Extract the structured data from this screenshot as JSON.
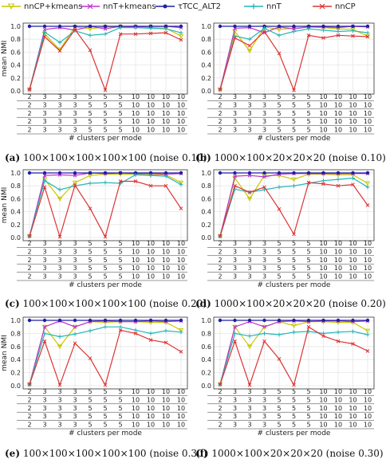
{
  "legend": [
    {
      "label": "nnCP+kmeans",
      "color": "#c8c800",
      "marker": "v"
    },
    {
      "label": "nnT+kmeans",
      "color": "#bb33cc",
      "marker": "x"
    },
    {
      "label": "τTCC_ALT2",
      "color": "#1f1fa8",
      "marker": "o"
    },
    {
      "label": "nnT",
      "color": "#22b5b5",
      "marker": "+"
    },
    {
      "label": "nnCP",
      "color": "#dd3333",
      "marker": "x"
    }
  ],
  "colors": {
    "nnCP_kmeans": "#c8c800",
    "nnT_kmeans": "#bb33cc",
    "tTCC": "#1f1fa8",
    "nnT": "#22b5b5",
    "nnCP": "#dd3333"
  },
  "captions": [
    {
      "letter": "(a)",
      "text": "100×100×100×100×100 (noise 0.10)"
    },
    {
      "letter": "(b)",
      "text": "1000×100×20×20×20 (noise 0.10)"
    },
    {
      "letter": "(c)",
      "text": "100×100×100×100×100 (noise 0.20)"
    },
    {
      "letter": "(d)",
      "text": "1000×100×20×20×20 (noise 0.20)"
    },
    {
      "letter": "(e)",
      "text": "100×100×100×100×100 (noise 0.30)"
    },
    {
      "letter": "(f)",
      "text": "1000×100×20×20×20 (noise 0.30)"
    }
  ],
  "chart_data": [
    {
      "type": "line",
      "ylabel": "mean NMI",
      "xlabel": "# clusters per mode",
      "ylim": [
        0.0,
        1.0
      ],
      "yticks": [
        "0.0",
        "0.2",
        "0.4",
        "0.6",
        "0.8",
        "1.0"
      ],
      "ytick_values": [
        0,
        0.2,
        0.4,
        0.6,
        0.8,
        1.0
      ],
      "grid": true,
      "categories": [
        [
          "2",
          "2",
          "2",
          "2",
          "2"
        ],
        [
          "3",
          "3",
          "3",
          "3",
          "3"
        ],
        [
          "3",
          "3",
          "3",
          "3",
          "3"
        ],
        [
          "3",
          "3",
          "3",
          "3",
          "3"
        ],
        [
          "5",
          "5",
          "5",
          "5",
          "5"
        ],
        [
          "5",
          "5",
          "5",
          "5",
          "5"
        ],
        [
          "5",
          "5",
          "5",
          "5",
          "5"
        ],
        [
          "10",
          "10",
          "10",
          "10",
          "10"
        ],
        [
          "10",
          "10",
          "10",
          "10",
          "10"
        ],
        [
          "10",
          "10",
          "10",
          "10",
          "10"
        ],
        [
          "10",
          "10",
          "10",
          "10",
          "10"
        ]
      ],
      "series": [
        {
          "key": "nnCP_kmeans",
          "values": [
            0.02,
            0.88,
            0.64,
            0.99,
            0.96,
            0.99,
            0.99,
            0.99,
            0.98,
            0.97,
            0.85
          ]
        },
        {
          "key": "nnT_kmeans",
          "values": [
            0.02,
            0.95,
            0.98,
            0.94,
            1.0,
            0.96,
            1.0,
            0.99,
            1.0,
            1.0,
            0.98
          ]
        },
        {
          "key": "tTCC",
          "values": [
            1.0,
            1.0,
            1.0,
            1.0,
            1.0,
            1.0,
            1.0,
            1.0,
            1.0,
            1.0,
            1.0
          ]
        },
        {
          "key": "nnT",
          "values": [
            0.02,
            0.91,
            0.75,
            0.93,
            0.86,
            0.88,
            0.98,
            0.98,
            0.97,
            0.96,
            0.9
          ]
        },
        {
          "key": "nnCP",
          "values": [
            0.02,
            0.84,
            0.62,
            0.95,
            0.63,
            0.01,
            0.88,
            0.88,
            0.89,
            0.9,
            0.79
          ]
        }
      ]
    },
    {
      "type": "line",
      "ylabel": "",
      "xlabel": "# clusters per mode",
      "ylim": [
        0.0,
        1.0
      ],
      "yticks": [
        "0.0",
        "0.2",
        "0.4",
        "0.6",
        "0.8",
        "1.0"
      ],
      "ytick_values": [
        0,
        0.2,
        0.4,
        0.6,
        0.8,
        1.0
      ],
      "grid": true,
      "categories": [
        [
          "2",
          "2",
          "2",
          "2",
          "2"
        ],
        [
          "3",
          "3",
          "3",
          "3",
          "3"
        ],
        [
          "3",
          "3",
          "3",
          "3",
          "3"
        ],
        [
          "3",
          "3",
          "3",
          "3",
          "3"
        ],
        [
          "5",
          "5",
          "5",
          "5",
          "5"
        ],
        [
          "5",
          "5",
          "5",
          "5",
          "5"
        ],
        [
          "5",
          "5",
          "5",
          "5",
          "5"
        ],
        [
          "10",
          "10",
          "10",
          "10",
          "10"
        ],
        [
          "10",
          "10",
          "10",
          "10",
          "10"
        ],
        [
          "10",
          "10",
          "10",
          "10",
          "10"
        ],
        [
          "10",
          "10",
          "10",
          "10",
          "10"
        ]
      ],
      "series": [
        {
          "key": "nnCP_kmeans",
          "values": [
            0.02,
            0.92,
            0.62,
            0.99,
            0.95,
            0.97,
            0.99,
            0.98,
            0.96,
            0.95,
            0.85
          ]
        },
        {
          "key": "nnT_kmeans",
          "values": [
            0.02,
            0.97,
            0.98,
            0.9,
            0.99,
            0.96,
            0.99,
            0.99,
            0.98,
            1.0,
            0.99
          ]
        },
        {
          "key": "tTCC",
          "values": [
            1.0,
            1.0,
            1.0,
            1.0,
            1.0,
            1.0,
            1.0,
            1.0,
            1.0,
            1.0,
            1.0
          ]
        },
        {
          "key": "nnT",
          "values": [
            0.02,
            0.85,
            0.8,
            0.97,
            0.86,
            0.92,
            0.96,
            0.94,
            0.92,
            0.93,
            0.9
          ]
        },
        {
          "key": "nnCP",
          "values": [
            0.02,
            0.82,
            0.7,
            0.92,
            0.58,
            0.01,
            0.86,
            0.82,
            0.86,
            0.85,
            0.84
          ]
        }
      ]
    },
    {
      "type": "line",
      "ylabel": "mean NMI",
      "xlabel": "# clusters per mode",
      "ylim": [
        0.0,
        1.0
      ],
      "yticks": [
        "0.0",
        "0.2",
        "0.4",
        "0.6",
        "0.8",
        "1.0"
      ],
      "ytick_values": [
        0,
        0.2,
        0.4,
        0.6,
        0.8,
        1.0
      ],
      "grid": true,
      "categories": [
        [
          "2",
          "2",
          "2",
          "2",
          "2"
        ],
        [
          "3",
          "3",
          "3",
          "3",
          "3"
        ],
        [
          "3",
          "3",
          "3",
          "3",
          "3"
        ],
        [
          "3",
          "3",
          "3",
          "3",
          "3"
        ],
        [
          "5",
          "5",
          "5",
          "5",
          "5"
        ],
        [
          "5",
          "5",
          "5",
          "5",
          "5"
        ],
        [
          "5",
          "5",
          "5",
          "5",
          "5"
        ],
        [
          "10",
          "10",
          "10",
          "10",
          "10"
        ],
        [
          "10",
          "10",
          "10",
          "10",
          "10"
        ],
        [
          "10",
          "10",
          "10",
          "10",
          "10"
        ],
        [
          "10",
          "10",
          "10",
          "10",
          "10"
        ]
      ],
      "series": [
        {
          "key": "nnCP_kmeans",
          "values": [
            0.02,
            0.9,
            0.6,
            0.85,
            0.96,
            0.98,
            0.98,
            0.98,
            0.97,
            0.97,
            0.85
          ]
        },
        {
          "key": "nnT_kmeans",
          "values": [
            0.02,
            0.96,
            0.97,
            0.96,
            1.0,
            0.99,
            1.0,
            0.99,
            0.99,
            0.98,
            0.99
          ]
        },
        {
          "key": "tTCC",
          "values": [
            1.0,
            1.0,
            1.0,
            1.0,
            1.0,
            1.0,
            1.0,
            1.0,
            1.0,
            1.0,
            1.0
          ]
        },
        {
          "key": "nnT",
          "values": [
            0.02,
            0.88,
            0.74,
            0.8,
            0.84,
            0.85,
            0.84,
            0.97,
            0.96,
            0.95,
            0.82
          ]
        },
        {
          "key": "nnCP",
          "values": [
            0.02,
            0.78,
            0.01,
            0.81,
            0.45,
            0.01,
            0.87,
            0.87,
            0.8,
            0.8,
            0.45
          ]
        }
      ]
    },
    {
      "type": "line",
      "ylabel": "",
      "xlabel": "# clusters per mode",
      "ylim": [
        0.0,
        1.0
      ],
      "yticks": [
        "0.0",
        "0.2",
        "0.4",
        "0.6",
        "0.8",
        "1.0"
      ],
      "ytick_values": [
        0,
        0.2,
        0.4,
        0.6,
        0.8,
        1.0
      ],
      "grid": true,
      "categories": [
        [
          "2",
          "2",
          "2",
          "2",
          "2"
        ],
        [
          "3",
          "3",
          "3",
          "3",
          "3"
        ],
        [
          "3",
          "3",
          "3",
          "3",
          "3"
        ],
        [
          "3",
          "3",
          "3",
          "3",
          "3"
        ],
        [
          "5",
          "5",
          "5",
          "5",
          "5"
        ],
        [
          "5",
          "5",
          "5",
          "5",
          "5"
        ],
        [
          "5",
          "5",
          "5",
          "5",
          "5"
        ],
        [
          "10",
          "10",
          "10",
          "10",
          "10"
        ],
        [
          "10",
          "10",
          "10",
          "10",
          "10"
        ],
        [
          "10",
          "10",
          "10",
          "10",
          "10"
        ],
        [
          "10",
          "10",
          "10",
          "10",
          "10"
        ]
      ],
      "series": [
        {
          "key": "nnCP_kmeans",
          "values": [
            0.02,
            0.92,
            0.6,
            0.96,
            0.96,
            0.9,
            0.98,
            0.98,
            0.97,
            0.97,
            0.84
          ]
        },
        {
          "key": "nnT_kmeans",
          "values": [
            0.02,
            0.95,
            0.96,
            0.94,
            0.98,
            0.99,
            0.99,
            0.99,
            0.99,
            0.99,
            0.99
          ]
        },
        {
          "key": "tTCC",
          "values": [
            1.0,
            1.0,
            1.0,
            1.0,
            1.0,
            1.0,
            1.0,
            1.0,
            1.0,
            1.0,
            1.0
          ]
        },
        {
          "key": "nnT",
          "values": [
            0.02,
            0.75,
            0.7,
            0.74,
            0.78,
            0.8,
            0.84,
            0.88,
            0.9,
            0.92,
            0.78
          ]
        },
        {
          "key": "nnCP",
          "values": [
            0.02,
            0.8,
            0.7,
            0.78,
            0.44,
            0.05,
            0.85,
            0.83,
            0.8,
            0.82,
            0.5
          ]
        }
      ]
    },
    {
      "type": "line",
      "ylabel": "mean NMI",
      "xlabel": "# clusters per mode",
      "ylim": [
        0.0,
        1.0
      ],
      "yticks": [
        "0.0",
        "0.2",
        "0.4",
        "0.6",
        "0.8",
        "1.0"
      ],
      "ytick_values": [
        0,
        0.2,
        0.4,
        0.6,
        0.8,
        1.0
      ],
      "grid": true,
      "categories": [
        [
          "2",
          "2",
          "2",
          "2",
          "2"
        ],
        [
          "3",
          "3",
          "3",
          "3",
          "3"
        ],
        [
          "3",
          "3",
          "3",
          "3",
          "3"
        ],
        [
          "3",
          "3",
          "3",
          "3",
          "3"
        ],
        [
          "5",
          "5",
          "5",
          "5",
          "5"
        ],
        [
          "5",
          "5",
          "5",
          "5",
          "5"
        ],
        [
          "5",
          "5",
          "5",
          "5",
          "5"
        ],
        [
          "10",
          "10",
          "10",
          "10",
          "10"
        ],
        [
          "10",
          "10",
          "10",
          "10",
          "10"
        ],
        [
          "10",
          "10",
          "10",
          "10",
          "10"
        ],
        [
          "10",
          "10",
          "10",
          "10",
          "10"
        ]
      ],
      "series": [
        {
          "key": "nnCP_kmeans",
          "values": [
            0.02,
            0.9,
            0.6,
            0.9,
            0.98,
            0.97,
            0.98,
            0.98,
            0.97,
            0.97,
            0.85
          ]
        },
        {
          "key": "nnT_kmeans",
          "values": [
            0.02,
            0.9,
            0.99,
            0.9,
            0.98,
            0.99,
            0.98,
            0.98,
            0.99,
            0.98,
            0.99
          ]
        },
        {
          "key": "tTCC",
          "values": [
            1.0,
            1.0,
            1.0,
            1.0,
            1.0,
            1.0,
            1.0,
            1.0,
            1.0,
            1.0,
            1.0
          ]
        },
        {
          "key": "nnT",
          "values": [
            0.02,
            0.8,
            0.75,
            0.79,
            0.84,
            0.9,
            0.9,
            0.85,
            0.8,
            0.84,
            0.82
          ]
        },
        {
          "key": "nnCP",
          "values": [
            0.02,
            0.68,
            0.01,
            0.65,
            0.42,
            0.01,
            0.85,
            0.8,
            0.7,
            0.66,
            0.52
          ]
        }
      ]
    },
    {
      "type": "line",
      "ylabel": "",
      "xlabel": "# clusters per mode",
      "ylim": [
        0.0,
        1.0
      ],
      "yticks": [
        "0.0",
        "0.2",
        "0.4",
        "0.6",
        "0.8",
        "1.0"
      ],
      "ytick_values": [
        0,
        0.2,
        0.4,
        0.6,
        0.8,
        1.0
      ],
      "grid": true,
      "categories": [
        [
          "2",
          "2",
          "2",
          "2",
          "2"
        ],
        [
          "3",
          "3",
          "3",
          "3",
          "3"
        ],
        [
          "3",
          "3",
          "3",
          "3",
          "3"
        ],
        [
          "3",
          "3",
          "3",
          "3",
          "3"
        ],
        [
          "5",
          "5",
          "5",
          "5",
          "5"
        ],
        [
          "5",
          "5",
          "5",
          "5",
          "5"
        ],
        [
          "5",
          "5",
          "5",
          "5",
          "5"
        ],
        [
          "10",
          "10",
          "10",
          "10",
          "10"
        ],
        [
          "10",
          "10",
          "10",
          "10",
          "10"
        ],
        [
          "10",
          "10",
          "10",
          "10",
          "10"
        ],
        [
          "10",
          "10",
          "10",
          "10",
          "10"
        ]
      ],
      "series": [
        {
          "key": "nnCP_kmeans",
          "values": [
            0.02,
            0.9,
            0.6,
            0.9,
            0.98,
            0.92,
            0.98,
            0.98,
            0.97,
            0.97,
            0.84
          ]
        },
        {
          "key": "nnT_kmeans",
          "values": [
            0.02,
            0.9,
            0.98,
            0.9,
            0.98,
            0.99,
            0.98,
            0.99,
            0.99,
            0.98,
            0.99
          ]
        },
        {
          "key": "tTCC",
          "values": [
            1.0,
            1.0,
            1.0,
            1.0,
            1.0,
            1.0,
            1.0,
            1.0,
            1.0,
            1.0,
            1.0
          ]
        },
        {
          "key": "nnT",
          "values": [
            0.02,
            0.8,
            0.76,
            0.8,
            0.78,
            0.82,
            0.83,
            0.8,
            0.82,
            0.83,
            0.78
          ]
        },
        {
          "key": "nnCP",
          "values": [
            0.02,
            0.68,
            0.01,
            0.68,
            0.41,
            0.01,
            0.9,
            0.76,
            0.68,
            0.64,
            0.53
          ]
        }
      ]
    }
  ]
}
